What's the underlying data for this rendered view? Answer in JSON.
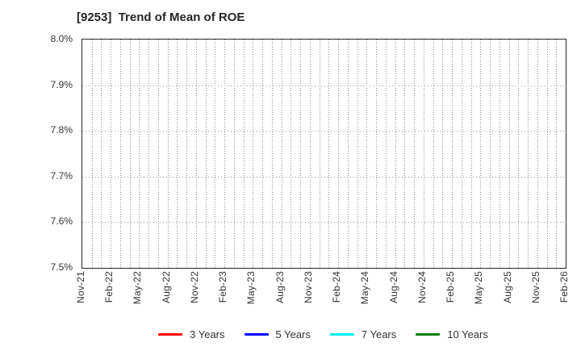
{
  "page": {
    "background": "#ffffff"
  },
  "chart_data": {
    "type": "line",
    "title": "[9253]  Trend of Mean of ROE",
    "xlabel": "",
    "ylabel": "",
    "ylim": [
      7.5,
      8.0
    ],
    "y_ticks": [
      {
        "value": 8.0,
        "label": "8.0%"
      },
      {
        "value": 7.9,
        "label": "7.9%"
      },
      {
        "value": 7.8,
        "label": "7.8%"
      },
      {
        "value": 7.7,
        "label": "7.7%"
      },
      {
        "value": 7.6,
        "label": "7.6%"
      },
      {
        "value": 7.5,
        "label": "7.5%"
      }
    ],
    "x_tick_labels": [
      "Nov-21",
      "Feb-22",
      "May-22",
      "Aug-22",
      "Nov-22",
      "Feb-23",
      "May-23",
      "Aug-23",
      "Nov-23",
      "Feb-24",
      "May-24",
      "Aug-24",
      "Nov-24",
      "Feb-25",
      "May-25",
      "Aug-25",
      "Nov-25",
      "Feb-26"
    ],
    "minor_gridlines_per_label": 3,
    "grid": true,
    "legend_position": "bottom",
    "series": [
      {
        "name": "3 Years",
        "color": "#ff0000",
        "values": []
      },
      {
        "name": "5 Years",
        "color": "#0000ff",
        "values": []
      },
      {
        "name": "7 Years",
        "color": "#00eeee",
        "values": []
      },
      {
        "name": "10 Years",
        "color": "#008000",
        "values": []
      }
    ],
    "colors": {
      "axis": "#262626",
      "grid": "#999999",
      "text": "#333333"
    }
  }
}
